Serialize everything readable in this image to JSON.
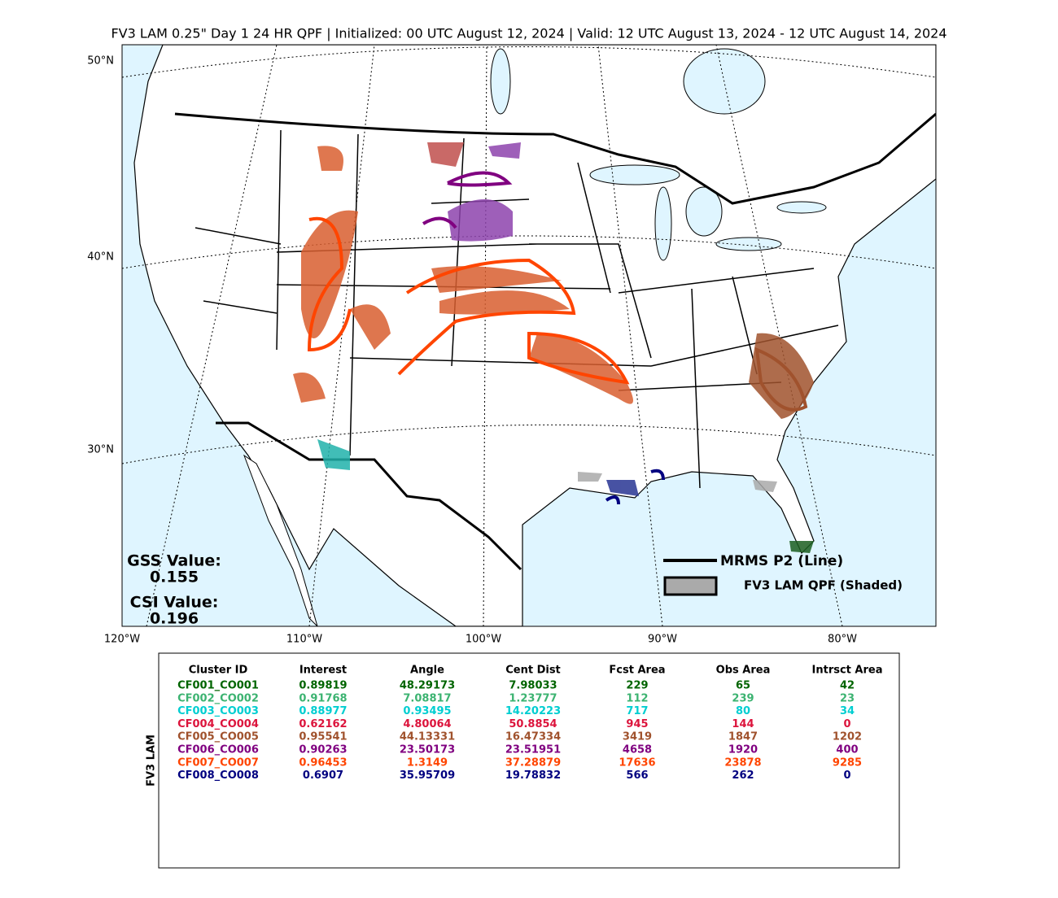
{
  "title": "FV3 LAM 0.25\" Day 1 24 HR QPF | Initialized: 00 UTC August 12, 2024 | Valid: 12 UTC August 13, 2024 - 12 UTC August 14, 2024",
  "map": {
    "lat_labels": [
      "50°N",
      "40°N",
      "30°N"
    ],
    "lon_labels": [
      "120°W",
      "110°W",
      "100°W",
      "90°W",
      "80°W"
    ],
    "legend": {
      "line": "MRMS P2 (Line)",
      "shaded": "FV3 LAM QPF (Shaded)"
    },
    "scores": [
      {
        "label": "GSS Value:",
        "value": 0.155
      },
      {
        "label": "CSI Value:",
        "value": 0.196
      }
    ]
  },
  "table": {
    "side_label": "FV3 LAM",
    "header": [
      "Cluster ID",
      "Interest",
      "Angle",
      "Cent Dist",
      "Fcst Area",
      "Obs Area",
      "Intrsct Area"
    ],
    "row_colors": [
      "#006400",
      "#3cb371",
      "#00ced1",
      "#dc143c",
      "#a0522d",
      "#800080",
      "#ff4500",
      "#000080"
    ],
    "rows": [
      [
        "CF001_CO001",
        0.89819,
        48.29173,
        7.98033,
        229,
        65,
        42
      ],
      [
        "CF002_CO002",
        0.91768,
        7.08817,
        1.23777,
        112,
        239,
        23
      ],
      [
        "CF003_CO003",
        0.88977,
        0.93495,
        14.20223,
        717,
        80,
        34
      ],
      [
        "CF004_CO004",
        0.62162,
        4.80064,
        50.8854,
        945,
        144,
        0
      ],
      [
        "CF005_CO005",
        0.95541,
        44.13331,
        16.47334,
        3419,
        1847,
        1202
      ],
      [
        "CF006_CO006",
        0.90263,
        23.50173,
        23.51951,
        4658,
        1920,
        400
      ],
      [
        "CF007_CO007",
        0.96453,
        1.3149,
        37.28879,
        17636,
        23878,
        9285
      ],
      [
        "CF008_CO008",
        0.6907,
        35.95709,
        19.78832,
        566,
        262,
        0
      ]
    ]
  }
}
